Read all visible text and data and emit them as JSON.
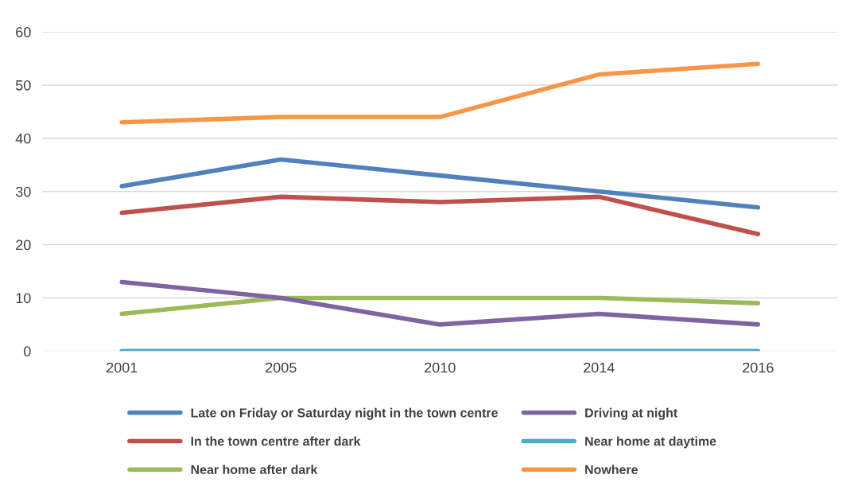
{
  "chart_data": {
    "type": "line",
    "categories": [
      "2001",
      "2005",
      "2010",
      "2014",
      "2016"
    ],
    "series": [
      {
        "name": "Late on Friday or Saturday night in the town centre",
        "color": "#4f81bd",
        "values": [
          31,
          36,
          33,
          30,
          27
        ]
      },
      {
        "name": "In the town centre after dark",
        "color": "#c0504d",
        "values": [
          26,
          29,
          28,
          29,
          22
        ]
      },
      {
        "name": "Near home after dark",
        "color": "#9bbb59",
        "values": [
          7,
          10,
          10,
          10,
          9
        ]
      },
      {
        "name": "Driving at night",
        "color": "#8064a2",
        "values": [
          13,
          10,
          5,
          7,
          5
        ]
      },
      {
        "name": "Near home at daytime",
        "color": "#4bacc6",
        "values": [
          0,
          0,
          0,
          0,
          0
        ]
      },
      {
        "name": "Nowhere",
        "color": "#f79646",
        "values": [
          43,
          44,
          44,
          52,
          54
        ]
      }
    ],
    "ylim": [
      0,
      60
    ],
    "yticks": [
      0,
      10,
      20,
      30,
      40,
      50,
      60
    ],
    "grid": "y",
    "legend": "bottom",
    "marker": "none",
    "line_style": "solid"
  }
}
